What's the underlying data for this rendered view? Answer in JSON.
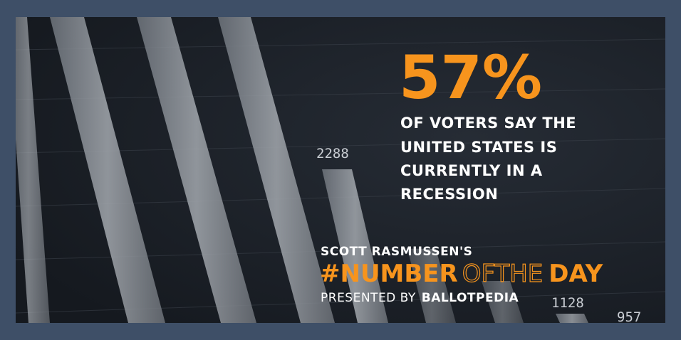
{
  "headline": {
    "number": "57%",
    "lines": [
      "OF VOTERS SAY THE",
      "UNITED STATES IS",
      "CURRENTLY IN A",
      "RECESSION"
    ]
  },
  "footer": {
    "author": "SCOTT RASMUSSEN'S",
    "tag_main": "#NUMBER",
    "tag_of": "OF",
    "tag_the": "THE",
    "tag_day": "DAY",
    "presented_by": "PRESENTED BY",
    "brand": "BALLOTPEDIA"
  },
  "background": {
    "labels": [
      "2288",
      "1128",
      "957"
    ]
  }
}
